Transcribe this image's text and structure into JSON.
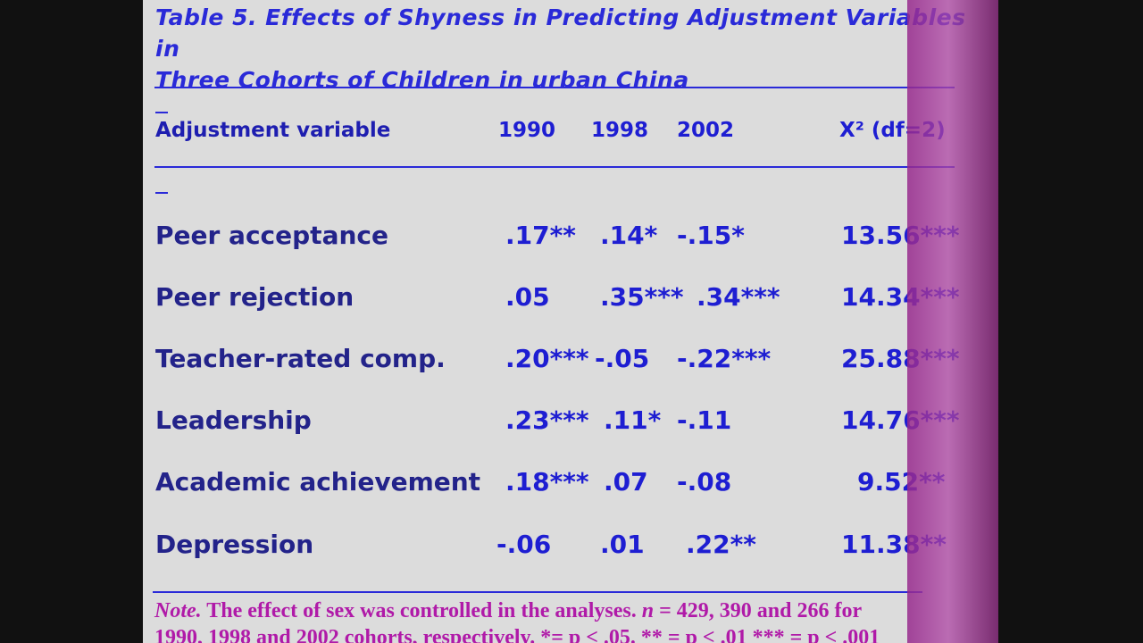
{
  "title": {
    "line1": "Table 5. Effects of Shyness in Predicting Adjustment Variables in",
    "line2": "Three Cohorts of Children in urban China"
  },
  "header": {
    "variable": "Adjustment variable",
    "c1990": "1990",
    "c1998": "1998",
    "c2002": "2002",
    "chi": "X² (df=2)"
  },
  "rows": [
    {
      "label": "Peer acceptance",
      "v1990": ".17**",
      "v1998": ".14*",
      "v2002": "-.15*",
      "chi": "13.56***"
    },
    {
      "label": "Peer rejection",
      "v1990": ".05",
      "v1998": ".35***",
      "v2002": ".34***",
      "chi": "14.34***"
    },
    {
      "label": "Teacher-rated comp.",
      "v1990": ".20***",
      "v1998": "-.05",
      "v2002": "-.22***",
      "chi": "25.88***"
    },
    {
      "label": "Leadership",
      "v1990": ".23***",
      "v1998": ".11*",
      "v2002": "-.11",
      "chi": "14.76***"
    },
    {
      "label": "Academic achievement",
      "v1990": ".18***",
      "v1998": ".07",
      "v2002": "-.08",
      "chi": "9.52**"
    },
    {
      "label": "Depression",
      "v1990": "-.06",
      "v1998": ".01",
      "v2002": ".22**",
      "chi": "11.38**"
    }
  ],
  "note": {
    "label": "Note.",
    "line1": "The effect of sex was controlled in the analyses.",
    "n_italic": "n",
    "line1_rest": "= 429, 390 and 266 for",
    "line2": "1990, 1998 and 2002 cohorts, respectively.  *= p < .05. ** = p < .01 *** = p < .001"
  },
  "colors": {
    "text_blue": "#1e1ed2",
    "label_navy": "#23238a",
    "note_magenta": "#b01aa8",
    "slide_bg": "#dcdcdc",
    "stripe": "#a03c9a"
  }
}
